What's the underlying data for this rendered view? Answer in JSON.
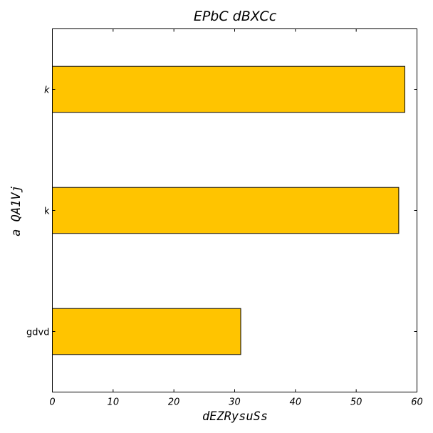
{
  "chart_data": {
    "type": "bar",
    "orientation": "horizontal",
    "title": "EPbC dBXCc",
    "xlabel": "dEZRysuSs",
    "ylabel": "a QA1Vj",
    "categories": [
      "gdvd",
      "k",
      "k"
    ],
    "category_styles": [
      "normal",
      "normal",
      "italic"
    ],
    "values": [
      31,
      57,
      58
    ],
    "xlim": [
      0,
      60
    ],
    "xticks": [
      0,
      10,
      20,
      30,
      40,
      50,
      60
    ],
    "grid": false,
    "legend": "none",
    "bar_color": "#ffc400"
  }
}
